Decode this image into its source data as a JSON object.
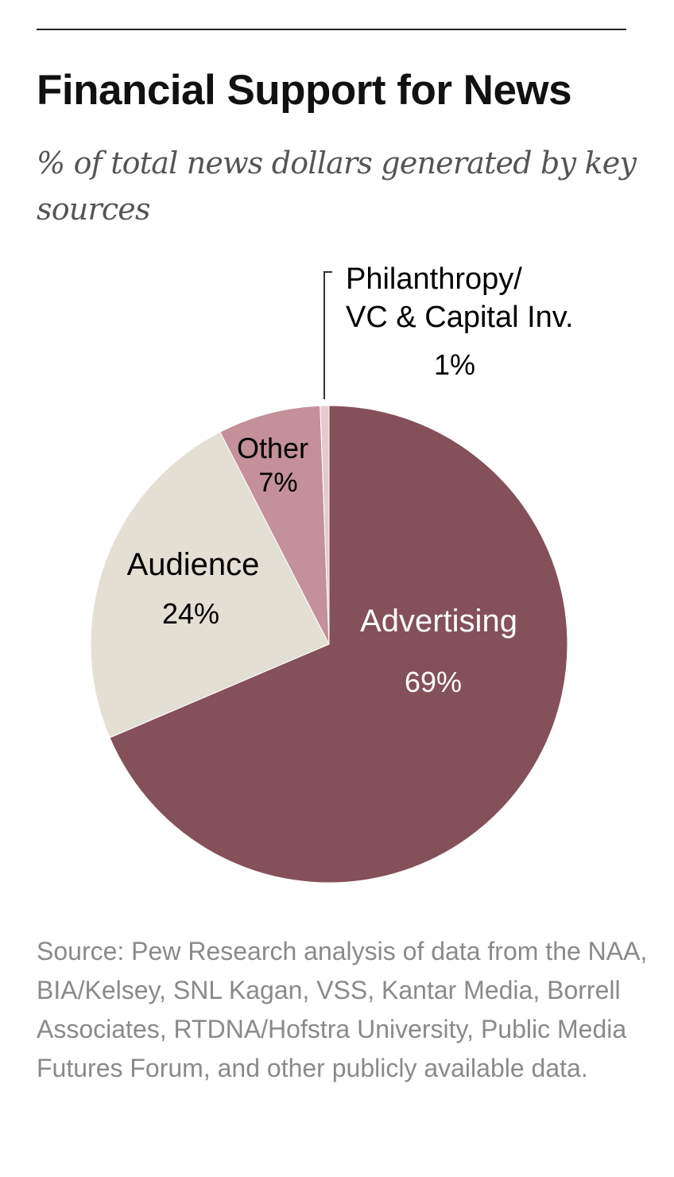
{
  "header": {
    "title": "Financial Support for News",
    "subtitle": "% of total news dollars generated by key sources"
  },
  "chart_data": {
    "type": "pie",
    "title": "Financial Support for News",
    "subtitle": "% of total news dollars generated by key sources",
    "start_angle_deg": 0,
    "direction": "clockwise",
    "slices": [
      {
        "label": "Advertising",
        "value": 69,
        "value_label": "69%",
        "color": "#84505a",
        "text_color": "#ffffff"
      },
      {
        "label": "Audience",
        "value": 24,
        "value_label": "24%",
        "color": "#e3dfd2",
        "text_color": "#000000"
      },
      {
        "label": "Other",
        "value": 7,
        "value_label": "7%",
        "color": "#c4909a",
        "text_color": "#000000"
      },
      {
        "label_lines": [
          "Philanthropy/",
          "VC & Capital Inv."
        ],
        "value": 0.6,
        "value_label": "1%",
        "color": "#e6c9ce",
        "text_color": "#000000",
        "callout": true
      }
    ]
  },
  "footer": {
    "source": "Source: Pew Research analysis of data from the NAA, BIA/Kelsey, SNL Kagan, VSS, Kantar Media, Borrell Associates, RTDNA/Hofstra University, Public Media Futures Forum, and other publicly available data."
  }
}
